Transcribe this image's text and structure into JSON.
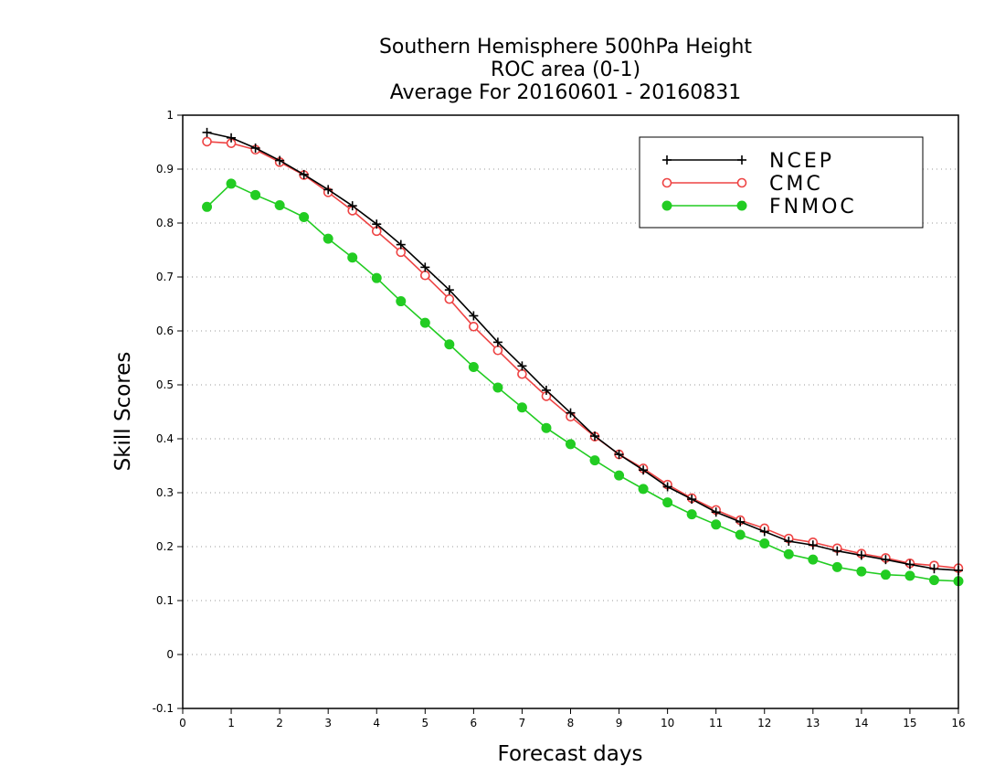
{
  "chart_data": {
    "type": "line",
    "title": [
      "Southern Hemisphere 500hPa Height",
      "ROC area (0-1)",
      "Average For 20160601 - 20160831"
    ],
    "xlabel": "Forecast days",
    "ylabel": "Skill Scores",
    "xlim": [
      0,
      16
    ],
    "ylim": [
      -0.1,
      1
    ],
    "x_ticks": [
      "0",
      "1",
      "2",
      "3",
      "4",
      "5",
      "6",
      "7",
      "8",
      "9",
      "10",
      "11",
      "12",
      "13",
      "14",
      "15",
      "16"
    ],
    "y_ticks": [
      "-0.1",
      "0",
      "0.1",
      "0.2",
      "0.3",
      "0.4",
      "0.5",
      "0.6",
      "0.7",
      "0.8",
      "0.9",
      "1"
    ],
    "grid": true,
    "legend_position": "top-right",
    "x": [
      0.5,
      1,
      1.5,
      2,
      2.5,
      3,
      3.5,
      4,
      4.5,
      5,
      5.5,
      6,
      6.5,
      7,
      7.5,
      8,
      8.5,
      9,
      9.5,
      10,
      10.5,
      11,
      11.5,
      12,
      12.5,
      13,
      13.5,
      14,
      14.5,
      15,
      15.5,
      16
    ],
    "series": [
      {
        "name": "NCEP",
        "color": "#000000",
        "marker": "plus",
        "values": [
          0.968,
          0.958,
          0.939,
          0.916,
          0.89,
          0.862,
          0.832,
          0.798,
          0.76,
          0.718,
          0.676,
          0.628,
          0.579,
          0.535,
          0.49,
          0.448,
          0.405,
          0.371,
          0.342,
          0.311,
          0.288,
          0.264,
          0.246,
          0.228,
          0.21,
          0.203,
          0.192,
          0.184,
          0.176,
          0.167,
          0.159,
          0.156
        ]
      },
      {
        "name": "CMC",
        "color": "#ee4444",
        "marker": "open-circle",
        "values": [
          0.951,
          0.948,
          0.936,
          0.913,
          0.889,
          0.857,
          0.823,
          0.785,
          0.746,
          0.703,
          0.659,
          0.608,
          0.564,
          0.52,
          0.479,
          0.441,
          0.404,
          0.371,
          0.345,
          0.315,
          0.29,
          0.268,
          0.249,
          0.234,
          0.215,
          0.208,
          0.197,
          0.187,
          0.179,
          0.169,
          0.165,
          0.16
        ]
      },
      {
        "name": "FNMOC",
        "color": "#22cc22",
        "marker": "filled-circle",
        "values": [
          0.83,
          0.873,
          0.852,
          0.833,
          0.811,
          0.771,
          0.736,
          0.698,
          0.655,
          0.615,
          0.575,
          0.533,
          0.495,
          0.458,
          0.42,
          0.39,
          0.36,
          0.332,
          0.307,
          0.282,
          0.26,
          0.241,
          0.222,
          0.206,
          0.186,
          0.176,
          0.162,
          0.154,
          0.148,
          0.146,
          0.138,
          0.136
        ]
      }
    ]
  }
}
